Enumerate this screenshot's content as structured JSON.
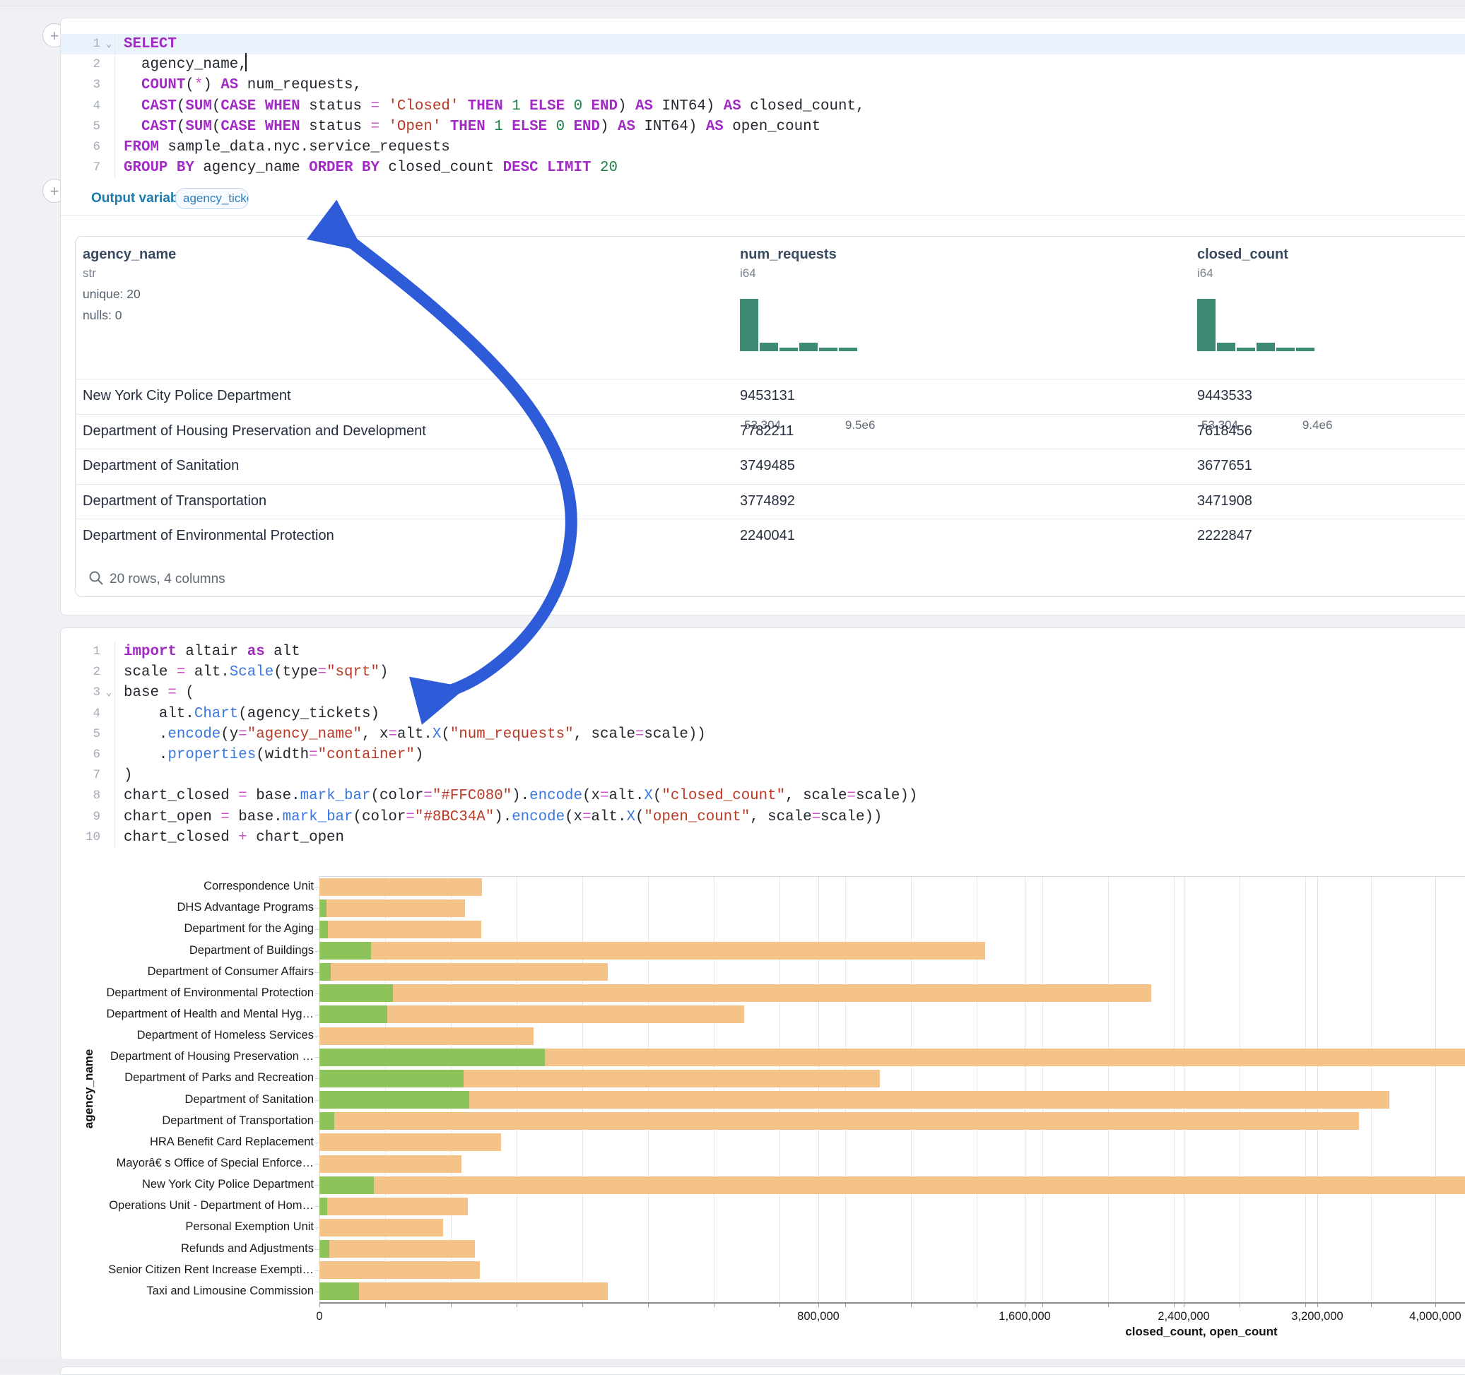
{
  "cells": {
    "sql": {
      "output_variable_label": "Output variable:",
      "output_variable": "agency_tickets",
      "lines": [
        {
          "n": "1",
          "fold": true,
          "hl": true,
          "tokens": [
            [
              "k",
              "SELECT"
            ],
            [
              "d",
              " "
            ]
          ]
        },
        {
          "n": "2",
          "tokens": [
            [
              "d",
              "  agency_name,"
            ]
          ]
        },
        {
          "n": "3",
          "tokens": [
            [
              "d",
              "  "
            ],
            [
              "k",
              "COUNT"
            ],
            [
              "d",
              "("
            ],
            [
              "o",
              "*"
            ],
            [
              "d",
              ") "
            ],
            [
              "k",
              "AS"
            ],
            [
              "d",
              " num_requests,"
            ]
          ]
        },
        {
          "n": "4",
          "tokens": [
            [
              "d",
              "  "
            ],
            [
              "k",
              "CAST"
            ],
            [
              "d",
              "("
            ],
            [
              "k",
              "SUM"
            ],
            [
              "d",
              "("
            ],
            [
              "k",
              "CASE"
            ],
            [
              "d",
              " "
            ],
            [
              "k",
              "WHEN"
            ],
            [
              "d",
              " status "
            ],
            [
              "o",
              "="
            ],
            [
              "d",
              " "
            ],
            [
              "s",
              "'Closed'"
            ],
            [
              "d",
              " "
            ],
            [
              "k",
              "THEN"
            ],
            [
              "d",
              " "
            ],
            [
              "n",
              "1"
            ],
            [
              "d",
              " "
            ],
            [
              "k",
              "ELSE"
            ],
            [
              "d",
              " "
            ],
            [
              "n",
              "0"
            ],
            [
              "d",
              " "
            ],
            [
              "k",
              "END"
            ],
            [
              "d",
              ") "
            ],
            [
              "k",
              "AS"
            ],
            [
              "d",
              " INT64) "
            ],
            [
              "k",
              "AS"
            ],
            [
              "d",
              " closed_count,"
            ]
          ]
        },
        {
          "n": "5",
          "tokens": [
            [
              "d",
              "  "
            ],
            [
              "k",
              "CAST"
            ],
            [
              "d",
              "("
            ],
            [
              "k",
              "SUM"
            ],
            [
              "d",
              "("
            ],
            [
              "k",
              "CASE"
            ],
            [
              "d",
              " "
            ],
            [
              "k",
              "WHEN"
            ],
            [
              "d",
              " status "
            ],
            [
              "o",
              "="
            ],
            [
              "d",
              " "
            ],
            [
              "s",
              "'Open'"
            ],
            [
              "d",
              " "
            ],
            [
              "k",
              "THEN"
            ],
            [
              "d",
              " "
            ],
            [
              "n",
              "1"
            ],
            [
              "d",
              " "
            ],
            [
              "k",
              "ELSE"
            ],
            [
              "d",
              " "
            ],
            [
              "n",
              "0"
            ],
            [
              "d",
              " "
            ],
            [
              "k",
              "END"
            ],
            [
              "d",
              ") "
            ],
            [
              "k",
              "AS"
            ],
            [
              "d",
              " INT64) "
            ],
            [
              "k",
              "AS"
            ],
            [
              "d",
              " open_count"
            ]
          ]
        },
        {
          "n": "6",
          "tokens": [
            [
              "k",
              "FROM"
            ],
            [
              "d",
              " sample_data.nyc.service_requests"
            ]
          ]
        },
        {
          "n": "7",
          "tokens": [
            [
              "k",
              "GROUP BY"
            ],
            [
              "d",
              " agency_name "
            ],
            [
              "k",
              "ORDER BY"
            ],
            [
              "d",
              " closed_count "
            ],
            [
              "k",
              "DESC"
            ],
            [
              "d",
              " "
            ],
            [
              "k",
              "LIMIT"
            ],
            [
              "d",
              " "
            ],
            [
              "n",
              "20"
            ]
          ]
        }
      ]
    },
    "python": {
      "lines": [
        {
          "n": "1",
          "tokens": [
            [
              "k",
              "import"
            ],
            [
              "d",
              " altair "
            ],
            [
              "k",
              "as"
            ],
            [
              "d",
              " alt"
            ]
          ]
        },
        {
          "n": "2",
          "tokens": [
            [
              "d",
              "scale "
            ],
            [
              "o",
              "="
            ],
            [
              "d",
              " alt."
            ],
            [
              "f",
              "Scale"
            ],
            [
              "d",
              "(type"
            ],
            [
              "o",
              "="
            ],
            [
              "s",
              "\"sqrt\""
            ],
            [
              "d",
              ")"
            ]
          ]
        },
        {
          "n": "3",
          "fold": true,
          "tokens": [
            [
              "d",
              "base "
            ],
            [
              "o",
              "="
            ],
            [
              "d",
              " ("
            ]
          ]
        },
        {
          "n": "4",
          "tokens": [
            [
              "d",
              "    alt."
            ],
            [
              "f",
              "Chart"
            ],
            [
              "d",
              "(agency_tickets)"
            ]
          ]
        },
        {
          "n": "5",
          "tokens": [
            [
              "d",
              "    ."
            ],
            [
              "f",
              "encode"
            ],
            [
              "d",
              "(y"
            ],
            [
              "o",
              "="
            ],
            [
              "s",
              "\"agency_name\""
            ],
            [
              "d",
              ", x"
            ],
            [
              "o",
              "="
            ],
            [
              "d",
              "alt."
            ],
            [
              "f",
              "X"
            ],
            [
              "d",
              "("
            ],
            [
              "s",
              "\"num_requests\""
            ],
            [
              "d",
              ", scale"
            ],
            [
              "o",
              "="
            ],
            [
              "d",
              "scale))"
            ]
          ]
        },
        {
          "n": "6",
          "tokens": [
            [
              "d",
              "    ."
            ],
            [
              "f",
              "properties"
            ],
            [
              "d",
              "(width"
            ],
            [
              "o",
              "="
            ],
            [
              "s",
              "\"container\""
            ],
            [
              "d",
              ")"
            ]
          ]
        },
        {
          "n": "7",
          "tokens": [
            [
              "d",
              ")"
            ]
          ]
        },
        {
          "n": "8",
          "tokens": [
            [
              "d",
              "chart_closed "
            ],
            [
              "o",
              "="
            ],
            [
              "d",
              " base."
            ],
            [
              "f",
              "mark_bar"
            ],
            [
              "d",
              "(color"
            ],
            [
              "o",
              "="
            ],
            [
              "s",
              "\"#FFC080\""
            ],
            [
              "d",
              ")."
            ],
            [
              "f",
              "encode"
            ],
            [
              "d",
              "(x"
            ],
            [
              "o",
              "="
            ],
            [
              "d",
              "alt."
            ],
            [
              "f",
              "X"
            ],
            [
              "d",
              "("
            ],
            [
              "s",
              "\"closed_count\""
            ],
            [
              "d",
              ", scale"
            ],
            [
              "o",
              "="
            ],
            [
              "d",
              "scale))"
            ]
          ]
        },
        {
          "n": "9",
          "tokens": [
            [
              "d",
              "chart_open "
            ],
            [
              "o",
              "="
            ],
            [
              "d",
              " base."
            ],
            [
              "f",
              "mark_bar"
            ],
            [
              "d",
              "(color"
            ],
            [
              "o",
              "="
            ],
            [
              "s",
              "\"#8BC34A\""
            ],
            [
              "d",
              ")."
            ],
            [
              "f",
              "encode"
            ],
            [
              "d",
              "(x"
            ],
            [
              "o",
              "="
            ],
            [
              "d",
              "alt."
            ],
            [
              "f",
              "X"
            ],
            [
              "d",
              "("
            ],
            [
              "s",
              "\"open_count\""
            ],
            [
              "d",
              ", scale"
            ],
            [
              "o",
              "="
            ],
            [
              "d",
              "scale))"
            ]
          ]
        },
        {
          "n": "10",
          "tokens": [
            [
              "d",
              "chart_closed "
            ],
            [
              "o",
              "+"
            ],
            [
              "d",
              " chart_open"
            ]
          ]
        }
      ]
    }
  },
  "table": {
    "columns": [
      {
        "name": "agency_name",
        "type": "str",
        "meta": [
          "unique: 20",
          "nulls: 0"
        ]
      },
      {
        "name": "num_requests",
        "type": "i64",
        "hist": {
          "bars": [
            1,
            0.16,
            0.07,
            0.16,
            0.07,
            0.07
          ],
          "min_label": "53,304",
          "max_label": "9.5e6"
        }
      },
      {
        "name": "closed_count",
        "type": "i64",
        "hist": {
          "bars": [
            1,
            0.16,
            0.07,
            0.16,
            0.07,
            0.07
          ],
          "min_label": "53,304",
          "max_label": "9.4e6"
        }
      }
    ],
    "rows": [
      [
        "New York City Police Department",
        "9453131",
        "9443533"
      ],
      [
        "Department of Housing Preservation and Development",
        "7782211",
        "7618456"
      ],
      [
        "Department of Sanitation",
        "3749485",
        "3677651"
      ],
      [
        "Department of Transportation",
        "3774892",
        "3471908"
      ],
      [
        "Department of Environmental Protection",
        "2240041",
        "2222847"
      ]
    ],
    "footer": "20 rows, 4 columns",
    "footer_icon": "search-icon"
  },
  "chart_data": {
    "type": "bar",
    "orientation": "horizontal",
    "x_scale": "sqrt",
    "xlabel": "closed_count, open_count",
    "ylabel": "agency_name",
    "grid": true,
    "legend": "none",
    "x_ticks_labeled": [
      0,
      800000,
      1600000,
      2400000,
      3200000,
      4000000
    ],
    "x_tick_labels": [
      "0",
      "800,000",
      "1,600,000",
      "2,400,000",
      "3,200,000",
      "4,000,000"
    ],
    "categories": [
      "Correspondence Unit",
      "DHS Advantage Programs",
      "Department for the Aging",
      "Department of Buildings",
      "Department of Consumer Affairs",
      "Department of Environmental Protection",
      "Department of Health and Mental Hyg…",
      "Department of Homeless Services",
      "Department of Housing Preservation …",
      "Department of Parks and Recreation",
      "Department of Sanitation",
      "Department of Transportation",
      "HRA Benefit Card Replacement",
      "Mayorâ€ s Office of Special Enforce…",
      "New York City Police Department",
      "Operations Unit - Department of Hom…",
      "Personal Exemption Unit",
      "Refunds and Adjustments",
      "Senior Citizen Rent Increase Exempti…",
      "Taxi and Limousine Commission"
    ],
    "series": [
      {
        "name": "closed_count",
        "color": "#FFC080",
        "rendered_color": "#F5C289",
        "values": [
          85000,
          68000,
          84000,
          1425000,
          267000,
          2222847,
          580000,
          147000,
          7618456,
          1010000,
          3677651,
          3471908,
          106000,
          65000,
          9443533,
          71000,
          49000,
          77500,
          82500,
          267000
        ]
      },
      {
        "name": "open_count",
        "color": "#8BC34A",
        "rendered_color": "#8CC35A",
        "values": [
          0,
          150,
          250,
          8500,
          400,
          17194,
          14800,
          0,
          163755,
          67000,
          71834,
          700,
          0,
          0,
          9598,
          200,
          0,
          300,
          0,
          5000
        ]
      }
    ]
  },
  "misc": {
    "arrow_color": "#2E5BD8",
    "arrow_name": "data-flow-arrow",
    "histogram_color": "#3E8973",
    "add_cell_icon": "plus-icon",
    "fold_icon": "chevron-down-icon"
  }
}
